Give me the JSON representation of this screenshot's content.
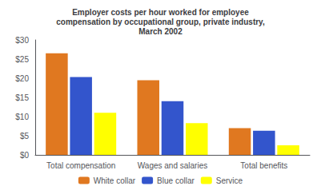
{
  "chart_data": {
    "type": "bar",
    "title": "Employer costs per hour worked for employee\ncompensation by occupational group, private industry,\nMarch 2002",
    "categories": [
      "Total compensation",
      "Wages and salaries",
      "Total benefits"
    ],
    "series": [
      {
        "name": "White collar",
        "color": "#E07820",
        "values": [
          26.5,
          19.5,
          7.0
        ]
      },
      {
        "name": "Blue collar",
        "color": "#3355CC",
        "values": [
          20.3,
          14.0,
          6.3
        ]
      },
      {
        "name": "Service",
        "color": "#FFFF00",
        "values": [
          11.0,
          8.3,
          2.5
        ]
      }
    ],
    "ylim": [
      0,
      30
    ],
    "yticks": [
      {
        "value": 0,
        "label": "$0"
      },
      {
        "value": 5,
        "label": "$5"
      },
      {
        "value": 10,
        "label": "$10"
      },
      {
        "value": 15,
        "label": "$15"
      },
      {
        "value": 20,
        "label": "$20"
      },
      {
        "value": 25,
        "label": "$25"
      },
      {
        "value": 30,
        "label": "$30"
      }
    ],
    "grid": false,
    "legend": "bottom"
  }
}
